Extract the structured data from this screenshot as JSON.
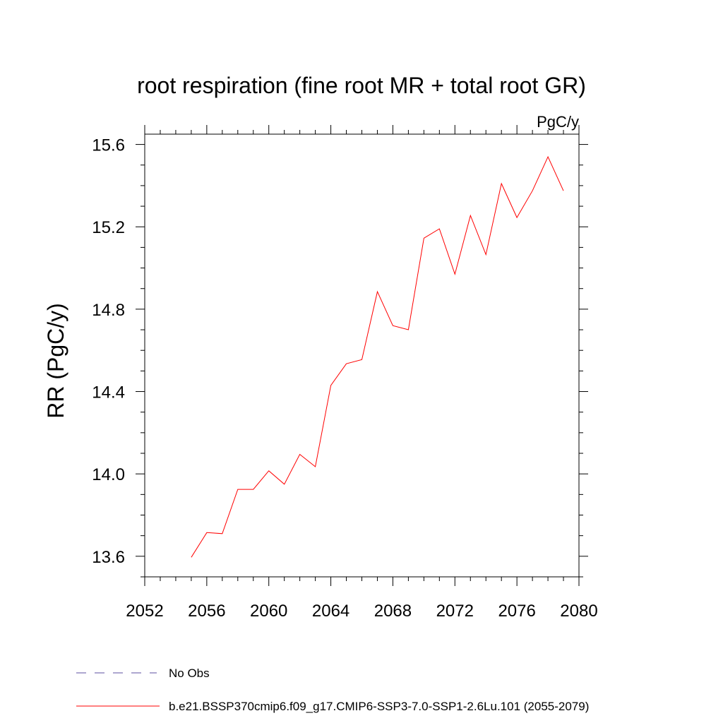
{
  "chart_data": {
    "type": "line",
    "title": "root respiration (fine root MR + total root GR)",
    "units": "PgC/y",
    "ylabel": "RR  (PgC/y)",
    "xlabel": "",
    "xlim": [
      2052,
      2080
    ],
    "ylim": [
      13.5,
      15.65
    ],
    "xticks": [
      2052,
      2056,
      2060,
      2064,
      2068,
      2072,
      2076,
      2080
    ],
    "yticks": [
      13.6,
      14.0,
      14.4,
      14.8,
      15.2,
      15.6
    ],
    "ytick_labels": [
      "13.6",
      "14.0",
      "14.4",
      "14.8",
      "15.2",
      "15.6"
    ],
    "series": [
      {
        "name": "b.e21.BSSP370cmip6.f09_g17.CMIP6-SSP3-7.0-SSP1-2.6Lu.101 (2055-2079)",
        "color": "#ff0000",
        "x": [
          2055,
          2056,
          2057,
          2058,
          2059,
          2060,
          2061,
          2062,
          2063,
          2064,
          2065,
          2066,
          2067,
          2068,
          2069,
          2070,
          2071,
          2072,
          2073,
          2074,
          2075,
          2076,
          2077,
          2078,
          2079
        ],
        "y": [
          13.595,
          13.715,
          13.71,
          13.925,
          13.925,
          14.015,
          13.95,
          14.095,
          14.035,
          14.43,
          14.535,
          14.555,
          14.885,
          14.72,
          14.7,
          15.145,
          15.19,
          14.97,
          15.255,
          15.065,
          15.41,
          15.245,
          15.375,
          15.54,
          15.375
        ]
      }
    ],
    "legend": [
      {
        "label": "No Obs",
        "style": "dashed",
        "color": "#5e4fa2"
      },
      {
        "label": "b.e21.BSSP370cmip6.f09_g17.CMIP6-SSP3-7.0-SSP1-2.6Lu.101 (2055-2079)",
        "style": "solid",
        "color": "#ff0000"
      }
    ],
    "grid": false,
    "legend_position": "bottom-left"
  }
}
